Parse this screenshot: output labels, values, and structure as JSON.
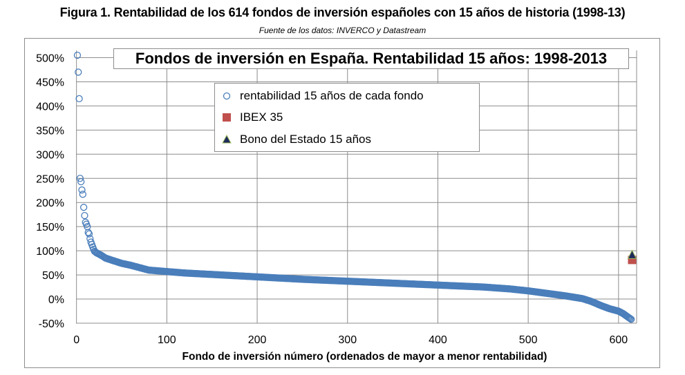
{
  "figure": {
    "caption": "Figura 1. Rentabilidad de los 614 fondos de inversión españoles con 15 años de historia (1998-13)",
    "source": "Fuente de los datos: INVERCO  y Datastream"
  },
  "chart_data": {
    "type": "scatter",
    "title": "Fondos de inversión en España. Rentabilidad 15 años: 1998-2013",
    "xlabel": "Fondo de inversión número (ordenados de mayor a menor rentabilidad)",
    "ylabel": "",
    "xlim": [
      -0.5,
      620
    ],
    "ylim": [
      -50,
      515
    ],
    "x_ticks": [
      0,
      100,
      200,
      300,
      400,
      500,
      600
    ],
    "x_tick_labels": [
      "0",
      "100",
      "200",
      "300",
      "400",
      "500",
      "600"
    ],
    "y_ticks": [
      -50,
      0,
      50,
      100,
      150,
      200,
      250,
      300,
      350,
      400,
      450,
      500
    ],
    "y_tick_labels": [
      "-50%",
      "0%",
      "50%",
      "100%",
      "150%",
      "200%",
      "250%",
      "300%",
      "350%",
      "400%",
      "450%",
      "500%"
    ],
    "grid": true,
    "legend_position": "top-center",
    "series": [
      {
        "name": "rentabilidad 15 años de cada fondo",
        "marker": "circle-open",
        "color": "#4a7ebb",
        "points": [
          [
            1,
            505
          ],
          [
            2,
            470
          ],
          [
            3,
            415
          ],
          [
            4,
            250
          ],
          [
            5,
            243
          ],
          [
            6,
            226
          ],
          [
            7,
            217
          ],
          [
            8,
            190
          ],
          [
            9,
            173
          ],
          [
            10,
            159
          ],
          [
            11,
            155
          ],
          [
            12,
            150
          ],
          [
            13,
            138
          ],
          [
            14,
            135
          ],
          [
            15,
            125
          ],
          [
            16,
            118
          ],
          [
            17,
            113
          ],
          [
            18,
            108
          ],
          [
            19,
            103
          ],
          [
            20,
            99
          ],
          [
            22,
            96
          ],
          [
            25,
            93
          ],
          [
            28,
            90
          ],
          [
            32,
            85
          ],
          [
            40,
            80
          ],
          [
            50,
            74
          ],
          [
            60,
            70
          ],
          [
            70,
            65
          ],
          [
            80,
            60
          ],
          [
            100,
            57
          ],
          [
            120,
            54
          ],
          [
            140,
            52
          ],
          [
            160,
            50
          ],
          [
            180,
            48
          ],
          [
            200,
            46
          ],
          [
            250,
            41
          ],
          [
            300,
            37
          ],
          [
            350,
            33
          ],
          [
            400,
            29
          ],
          [
            450,
            25
          ],
          [
            480,
            21
          ],
          [
            500,
            17
          ],
          [
            520,
            12
          ],
          [
            540,
            7
          ],
          [
            550,
            4
          ],
          [
            560,
            1
          ],
          [
            570,
            -5
          ],
          [
            580,
            -13
          ],
          [
            590,
            -20
          ],
          [
            600,
            -25
          ],
          [
            605,
            -30
          ],
          [
            608,
            -34
          ],
          [
            611,
            -38
          ],
          [
            614,
            -42
          ]
        ]
      },
      {
        "name": "IBEX 35",
        "marker": "square",
        "color": "#c0504d",
        "points": [
          [
            615,
            81
          ]
        ]
      },
      {
        "name": "Bono del Estado 15 años",
        "marker": "triangle",
        "color": "#1f2a5c",
        "edge_color": "#9bbb59",
        "points": [
          [
            615,
            91
          ]
        ]
      }
    ]
  }
}
